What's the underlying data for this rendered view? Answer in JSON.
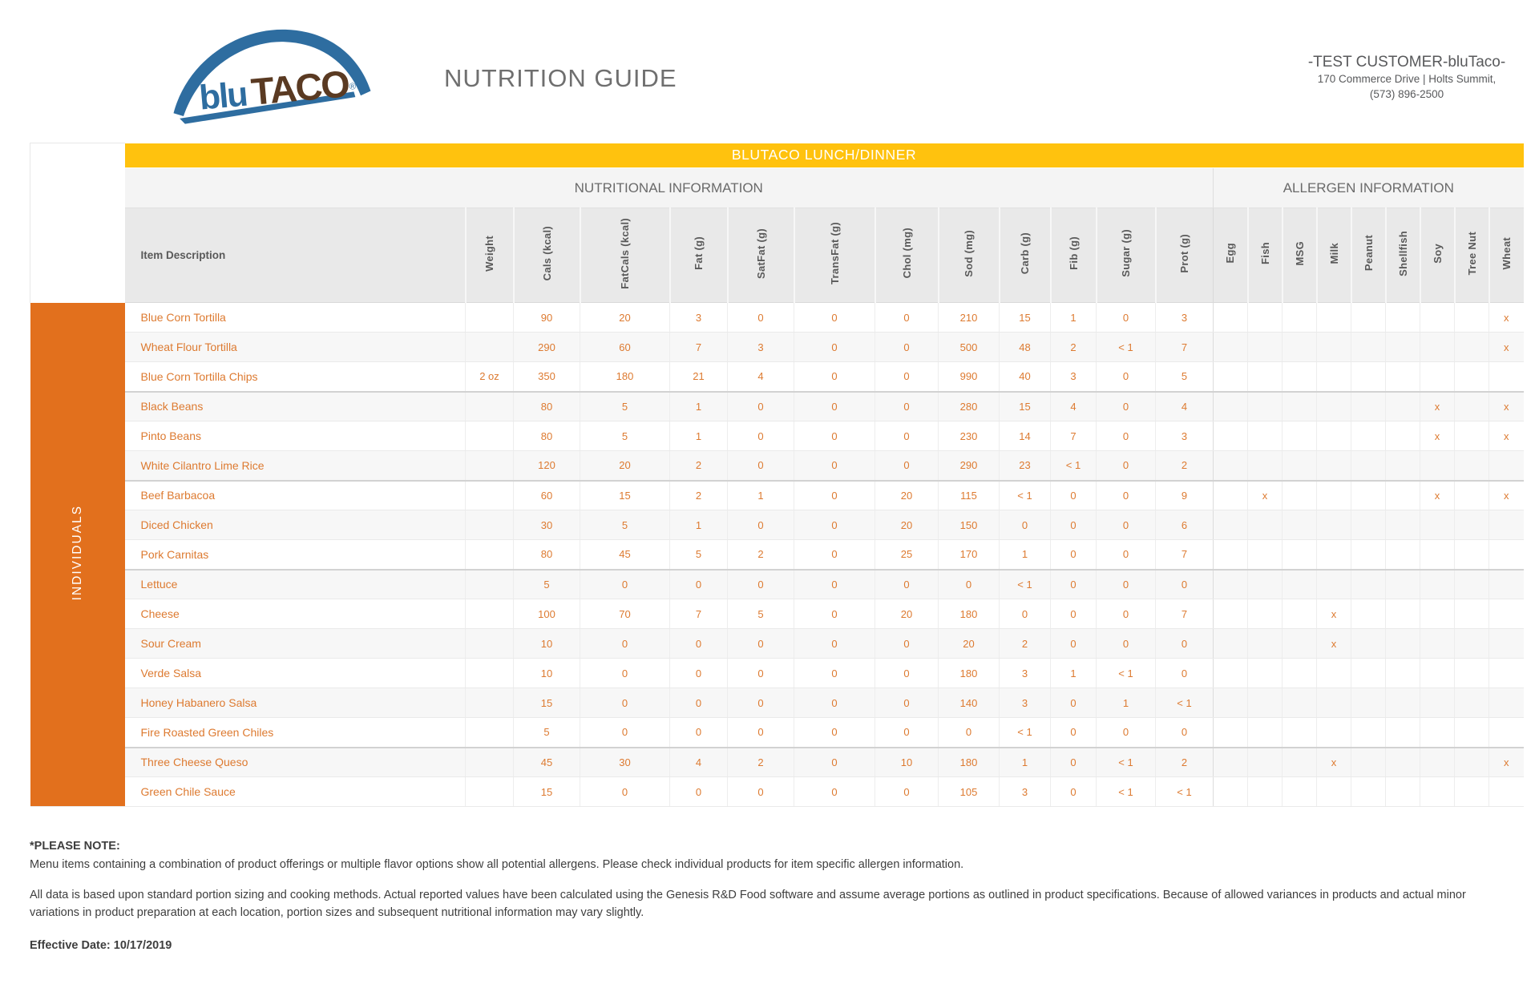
{
  "header": {
    "logo_text_blu": "blu",
    "logo_text_taco": "TACO",
    "logo_reg_mark": "®",
    "title": "NUTRITION GUIDE",
    "customer_name": "-TEST CUSTOMER-bluTaco-",
    "customer_address": "170 Commerce Drive | Holts Summit,",
    "customer_phone": "(573) 896-2500"
  },
  "banner": {
    "label": "BLUTACO LUNCH/DINNER"
  },
  "sections": {
    "nutrition": "NUTRITIONAL INFORMATION",
    "allergen": "ALLERGEN INFORMATION"
  },
  "group_label": "INDIVIDUALS",
  "table": {
    "item_header": "Item Description",
    "nutrition_columns": [
      "Weight",
      "Cals (kcal)",
      "FatCals (kcal)",
      "Fat (g)",
      "SatFat (g)",
      "TransFat (g)",
      "Chol (mg)",
      "Sod (mg)",
      "Carb (g)",
      "Fib (g)",
      "Sugar (g)",
      "Prot (g)"
    ],
    "allergen_columns": [
      "Egg",
      "Fish",
      "MSG",
      "Milk",
      "Peanut",
      "Shellfish",
      "Soy",
      "Tree Nut",
      "Wheat"
    ],
    "rows": [
      {
        "item": "Blue Corn Tortilla",
        "values": [
          "",
          "90",
          "20",
          "3",
          "0",
          "0",
          "0",
          "210",
          "15",
          "1",
          "0",
          "3"
        ],
        "allergens": [
          "",
          "",
          "",
          "",
          "",
          "",
          "",
          "",
          "x"
        ],
        "divider": false
      },
      {
        "item": "Wheat Flour Tortilla",
        "values": [
          "",
          "290",
          "60",
          "7",
          "3",
          "0",
          "0",
          "500",
          "48",
          "2",
          "< 1",
          "7"
        ],
        "allergens": [
          "",
          "",
          "",
          "",
          "",
          "",
          "",
          "",
          "x"
        ],
        "divider": false
      },
      {
        "item": "Blue Corn Tortilla Chips",
        "values": [
          "2 oz",
          "350",
          "180",
          "21",
          "4",
          "0",
          "0",
          "990",
          "40",
          "3",
          "0",
          "5"
        ],
        "allergens": [
          "",
          "",
          "",
          "",
          "",
          "",
          "",
          "",
          ""
        ],
        "divider": true
      },
      {
        "item": "Black Beans",
        "values": [
          "",
          "80",
          "5",
          "1",
          "0",
          "0",
          "0",
          "280",
          "15",
          "4",
          "0",
          "4"
        ],
        "allergens": [
          "",
          "",
          "",
          "",
          "",
          "",
          "x",
          "",
          "x"
        ],
        "divider": false
      },
      {
        "item": "Pinto Beans",
        "values": [
          "",
          "80",
          "5",
          "1",
          "0",
          "0",
          "0",
          "230",
          "14",
          "7",
          "0",
          "3"
        ],
        "allergens": [
          "",
          "",
          "",
          "",
          "",
          "",
          "x",
          "",
          "x"
        ],
        "divider": false
      },
      {
        "item": "White Cilantro Lime Rice",
        "values": [
          "",
          "120",
          "20",
          "2",
          "0",
          "0",
          "0",
          "290",
          "23",
          "< 1",
          "0",
          "2"
        ],
        "allergens": [
          "",
          "",
          "",
          "",
          "",
          "",
          "",
          "",
          ""
        ],
        "divider": true
      },
      {
        "item": "Beef Barbacoa",
        "values": [
          "",
          "60",
          "15",
          "2",
          "1",
          "0",
          "20",
          "115",
          "< 1",
          "0",
          "0",
          "9"
        ],
        "allergens": [
          "",
          "x",
          "",
          "",
          "",
          "",
          "x",
          "",
          "x"
        ],
        "divider": false
      },
      {
        "item": "Diced Chicken",
        "values": [
          "",
          "30",
          "5",
          "1",
          "0",
          "0",
          "20",
          "150",
          "0",
          "0",
          "0",
          "6"
        ],
        "allergens": [
          "",
          "",
          "",
          "",
          "",
          "",
          "",
          "",
          ""
        ],
        "divider": false
      },
      {
        "item": "Pork Carnitas",
        "values": [
          "",
          "80",
          "45",
          "5",
          "2",
          "0",
          "25",
          "170",
          "1",
          "0",
          "0",
          "7"
        ],
        "allergens": [
          "",
          "",
          "",
          "",
          "",
          "",
          "",
          "",
          ""
        ],
        "divider": true
      },
      {
        "item": "Lettuce",
        "values": [
          "",
          "5",
          "0",
          "0",
          "0",
          "0",
          "0",
          "0",
          "< 1",
          "0",
          "0",
          "0"
        ],
        "allergens": [
          "",
          "",
          "",
          "",
          "",
          "",
          "",
          "",
          ""
        ],
        "divider": false
      },
      {
        "item": "Cheese",
        "values": [
          "",
          "100",
          "70",
          "7",
          "5",
          "0",
          "20",
          "180",
          "0",
          "0",
          "0",
          "7"
        ],
        "allergens": [
          "",
          "",
          "",
          "x",
          "",
          "",
          "",
          "",
          ""
        ],
        "divider": false
      },
      {
        "item": "Sour Cream",
        "values": [
          "",
          "10",
          "0",
          "0",
          "0",
          "0",
          "0",
          "20",
          "2",
          "0",
          "0",
          "0"
        ],
        "allergens": [
          "",
          "",
          "",
          "x",
          "",
          "",
          "",
          "",
          ""
        ],
        "divider": false
      },
      {
        "item": "Verde Salsa",
        "values": [
          "",
          "10",
          "0",
          "0",
          "0",
          "0",
          "0",
          "180",
          "3",
          "1",
          "< 1",
          "0"
        ],
        "allergens": [
          "",
          "",
          "",
          "",
          "",
          "",
          "",
          "",
          ""
        ],
        "divider": false
      },
      {
        "item": "Honey Habanero Salsa",
        "values": [
          "",
          "15",
          "0",
          "0",
          "0",
          "0",
          "0",
          "140",
          "3",
          "0",
          "1",
          "< 1"
        ],
        "allergens": [
          "",
          "",
          "",
          "",
          "",
          "",
          "",
          "",
          ""
        ],
        "divider": false
      },
      {
        "item": "Fire Roasted Green Chiles",
        "values": [
          "",
          "5",
          "0",
          "0",
          "0",
          "0",
          "0",
          "0",
          "< 1",
          "0",
          "0",
          "0"
        ],
        "allergens": [
          "",
          "",
          "",
          "",
          "",
          "",
          "",
          "",
          ""
        ],
        "divider": true
      },
      {
        "item": "Three Cheese Queso",
        "values": [
          "",
          "45",
          "30",
          "4",
          "2",
          "0",
          "10",
          "180",
          "1",
          "0",
          "< 1",
          "2"
        ],
        "allergens": [
          "",
          "",
          "",
          "x",
          "",
          "",
          "",
          "",
          "x"
        ],
        "divider": false
      },
      {
        "item": "Green Chile Sauce",
        "values": [
          "",
          "15",
          "0",
          "0",
          "0",
          "0",
          "0",
          "105",
          "3",
          "0",
          "< 1",
          "< 1"
        ],
        "allergens": [
          "",
          "",
          "",
          "",
          "",
          "",
          "",
          "",
          ""
        ],
        "divider": false
      }
    ]
  },
  "footer": {
    "note_title": "*PLEASE NOTE:",
    "note_1": "Menu items containing a combination of product offerings or multiple flavor options show all potential allergens. Please check individual products for item specific allergen information.",
    "note_2": "All data is based upon standard portion sizing and cooking methods. Actual reported values have been calculated using the Genesis R&D Food software and assume average portions as outlined in product specifications. Because of allowed variances in products and actual minor variations in product preparation at each location, portion sizes and subsequent nutritional information may vary slightly.",
    "effective_date": "Effective Date: 10/17/2019"
  },
  "colors": {
    "banner_yellow": "#FFC20E",
    "group_orange": "#E2701D",
    "data_text_orange": "#DD7A30",
    "header_text_gray": "#595959",
    "logo_blue": "#2E6DA0",
    "logo_brown": "#5A3A22"
  }
}
